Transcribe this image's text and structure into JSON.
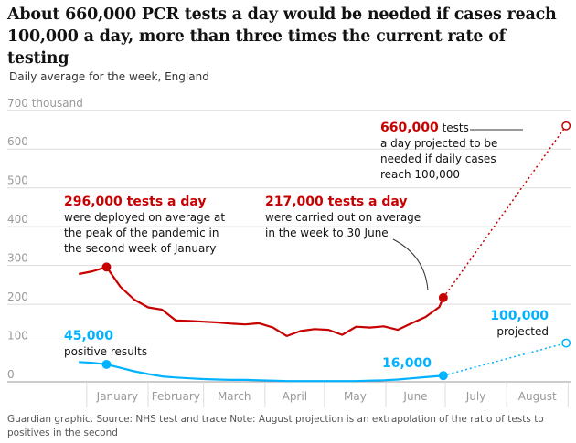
{
  "headline": "About 660,000 PCR tests a day would be needed if cases reach 100,000 a day, more than three times the current rate of testing",
  "subtitle": "Daily average for the week, England",
  "footer": "Guardian graphic. Source: NHS test and trace Note: August projection is an extrapolation of the ratio of tests to positives in the second",
  "colors": {
    "tests": "#c70000",
    "positives": "#00b2ff",
    "grid": "#dcdcdc",
    "axis_text": "#999999",
    "annotation_text": "#121212"
  },
  "chart_data": {
    "type": "line",
    "y_unit_label": "700 thousand",
    "y_ticks": [
      "0",
      "100",
      "200",
      "300",
      "400",
      "500",
      "600"
    ],
    "ylim": [
      0,
      700
    ],
    "x_months": [
      "January",
      "February",
      "March",
      "April",
      "May",
      "June",
      "July",
      "August"
    ],
    "grid": "horizontal",
    "series": [
      {
        "key": "tests",
        "values": [
          {
            "x": "2020-12-28",
            "y": 278
          },
          {
            "x": "2021-01-04",
            "y": 285
          },
          {
            "x": "2021-01-11",
            "y": 296
          },
          {
            "x": "2021-01-18",
            "y": 245
          },
          {
            "x": "2021-01-25",
            "y": 212
          },
          {
            "x": "2021-02-01",
            "y": 192
          },
          {
            "x": "2021-02-08",
            "y": 186
          },
          {
            "x": "2021-02-15",
            "y": 158
          },
          {
            "x": "2021-02-22",
            "y": 157
          },
          {
            "x": "2021-03-01",
            "y": 155
          },
          {
            "x": "2021-03-08",
            "y": 153
          },
          {
            "x": "2021-03-15",
            "y": 150
          },
          {
            "x": "2021-03-22",
            "y": 148
          },
          {
            "x": "2021-03-29",
            "y": 151
          },
          {
            "x": "2021-04-05",
            "y": 140
          },
          {
            "x": "2021-04-12",
            "y": 118
          },
          {
            "x": "2021-04-19",
            "y": 131
          },
          {
            "x": "2021-04-26",
            "y": 136
          },
          {
            "x": "2021-05-03",
            "y": 134
          },
          {
            "x": "2021-05-10",
            "y": 121
          },
          {
            "x": "2021-05-17",
            "y": 142
          },
          {
            "x": "2021-05-24",
            "y": 140
          },
          {
            "x": "2021-05-31",
            "y": 143
          },
          {
            "x": "2021-06-07",
            "y": 134
          },
          {
            "x": "2021-06-14",
            "y": 151
          },
          {
            "x": "2021-06-21",
            "y": 167
          },
          {
            "x": "2021-06-28",
            "y": 193
          },
          {
            "x": "2021-06-30",
            "y": 217
          }
        ],
        "projection": [
          {
            "x": "2021-06-30",
            "y": 217
          },
          {
            "x": "2021-08-31",
            "y": 660
          }
        ]
      },
      {
        "key": "positives",
        "values": [
          {
            "x": "2020-12-28",
            "y": 51
          },
          {
            "x": "2021-01-04",
            "y": 49
          },
          {
            "x": "2021-01-11",
            "y": 45
          },
          {
            "x": "2021-01-18",
            "y": 36
          },
          {
            "x": "2021-01-25",
            "y": 27
          },
          {
            "x": "2021-02-01",
            "y": 20
          },
          {
            "x": "2021-02-08",
            "y": 14
          },
          {
            "x": "2021-02-15",
            "y": 11
          },
          {
            "x": "2021-02-22",
            "y": 9
          },
          {
            "x": "2021-03-01",
            "y": 7
          },
          {
            "x": "2021-03-08",
            "y": 6
          },
          {
            "x": "2021-03-15",
            "y": 5
          },
          {
            "x": "2021-03-22",
            "y": 5
          },
          {
            "x": "2021-03-29",
            "y": 4
          },
          {
            "x": "2021-04-05",
            "y": 3
          },
          {
            "x": "2021-04-12",
            "y": 2
          },
          {
            "x": "2021-04-19",
            "y": 2
          },
          {
            "x": "2021-04-26",
            "y": 2
          },
          {
            "x": "2021-05-03",
            "y": 2
          },
          {
            "x": "2021-05-10",
            "y": 2
          },
          {
            "x": "2021-05-17",
            "y": 2
          },
          {
            "x": "2021-05-24",
            "y": 3
          },
          {
            "x": "2021-05-31",
            "y": 4
          },
          {
            "x": "2021-06-07",
            "y": 6
          },
          {
            "x": "2021-06-14",
            "y": 9
          },
          {
            "x": "2021-06-21",
            "y": 12
          },
          {
            "x": "2021-06-28",
            "y": 15
          },
          {
            "x": "2021-06-30",
            "y": 16
          }
        ],
        "projection": [
          {
            "x": "2021-06-30",
            "y": 16
          },
          {
            "x": "2021-08-31",
            "y": 100
          }
        ]
      }
    ],
    "annotations": [
      {
        "id": "peak",
        "series": "tests",
        "x": "2021-01-11",
        "y": 296,
        "bold": "296,000 tests a day",
        "lines": [
          "were deployed on average at",
          "the peak of the pandemic in",
          "the second week of January"
        ]
      },
      {
        "id": "current",
        "series": "tests",
        "x": "2021-06-30",
        "y": 217,
        "bold": "217,000 tests a day",
        "lines": [
          "were carried out on average",
          "in the week to 30 June"
        ]
      },
      {
        "id": "projected-tests",
        "series": "tests",
        "x": "2021-08-31",
        "y": 660,
        "bold": "660,000",
        "bold_suffix": " tests",
        "lines": [
          "a day projected to be",
          "needed if daily cases",
          "reach 100,000"
        ]
      },
      {
        "id": "peak-positives",
        "series": "positives",
        "x": "2021-01-11",
        "y": 45,
        "bold": "45,000",
        "lines": [
          "positive results"
        ]
      },
      {
        "id": "current-positives",
        "series": "positives",
        "x": "2021-06-30",
        "y": 16,
        "bold": "16,000",
        "lines": []
      },
      {
        "id": "projected-positives",
        "series": "positives",
        "x": "2021-08-31",
        "y": 100,
        "bold": "100,000",
        "lines": [
          "projected"
        ]
      }
    ]
  }
}
